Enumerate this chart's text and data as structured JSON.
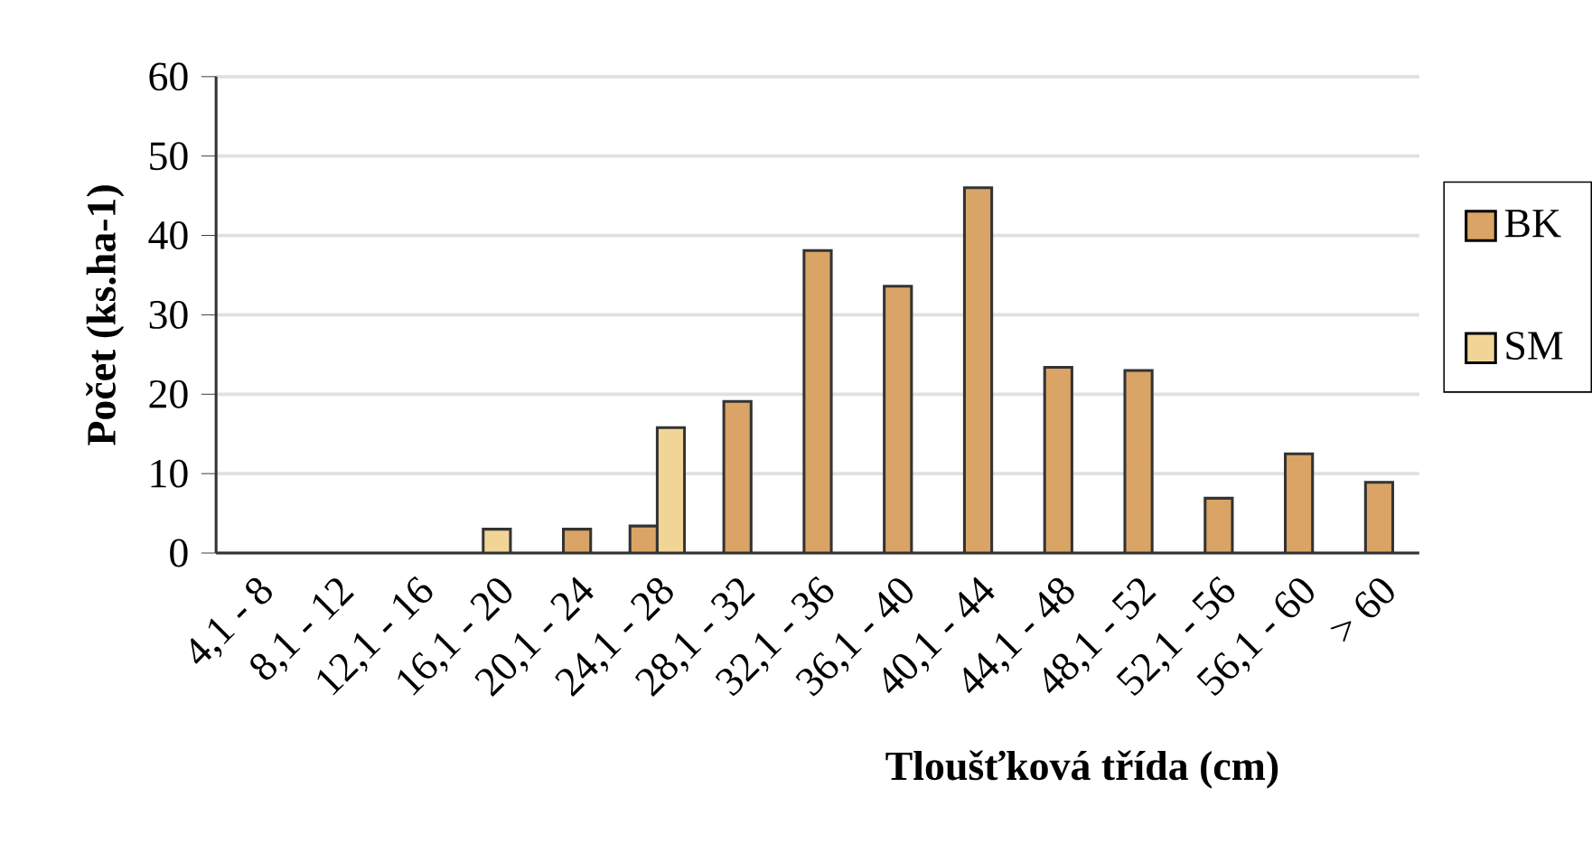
{
  "chart_data": {
    "type": "bar",
    "xlabel": "Tloušťková třída (cm)",
    "ylabel": "Počet (ks.ha-1)",
    "categories": [
      "4,1 - 8",
      "8,1 - 12",
      "12,1 - 16",
      "16,1 - 20",
      "20,1 - 24",
      "24,1 - 28",
      "28,1 - 32",
      "32,1 - 36",
      "36,1 - 40",
      "40,1 - 44",
      "44,1 - 48",
      "48,1 - 52",
      "52,1 - 56",
      "56,1 - 60",
      "> 60"
    ],
    "series": [
      {
        "name": "BK",
        "color": "#d9a465",
        "values": [
          null,
          null,
          null,
          null,
          3,
          3.4,
          19.1,
          38.1,
          33.6,
          46,
          23.4,
          23,
          6.9,
          12.5,
          8.9
        ]
      },
      {
        "name": "SM",
        "color": "#f0d597",
        "values": [
          null,
          null,
          null,
          3,
          null,
          15.8,
          null,
          null,
          null,
          null,
          null,
          null,
          null,
          null,
          null
        ]
      }
    ],
    "ylim": [
      0,
      60
    ],
    "yticks": [
      0,
      10,
      20,
      30,
      40,
      50,
      60
    ],
    "grid": "y",
    "legend": "right"
  }
}
